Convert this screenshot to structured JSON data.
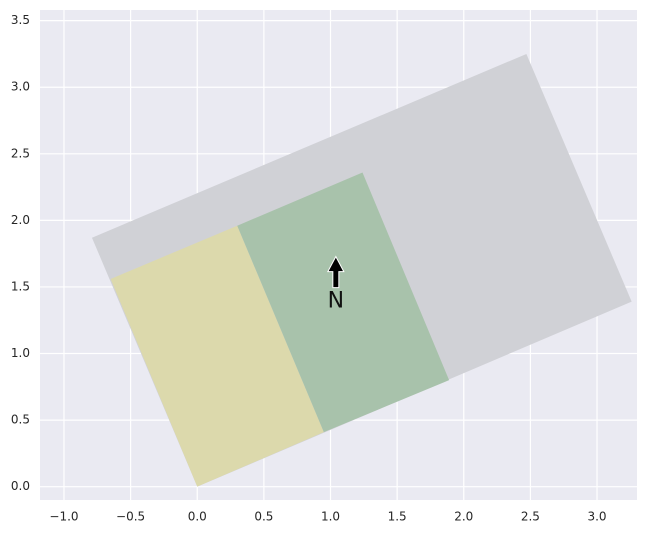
{
  "chart_data": {
    "type": "polygon",
    "xlim": [
      -1.18,
      3.3
    ],
    "ylim": [
      -0.1,
      3.58
    ],
    "xticks": [
      {
        "value": -1.0,
        "label": "−1.0"
      },
      {
        "value": -0.5,
        "label": "−0.5"
      },
      {
        "value": 0.0,
        "label": "0.0"
      },
      {
        "value": 0.5,
        "label": "0.5"
      },
      {
        "value": 1.0,
        "label": "1.0"
      },
      {
        "value": 1.5,
        "label": "1.5"
      },
      {
        "value": 2.0,
        "label": "2.0"
      },
      {
        "value": 2.5,
        "label": "2.5"
      },
      {
        "value": 3.0,
        "label": "3.0"
      }
    ],
    "yticks": [
      {
        "value": 0.0,
        "label": "0.0"
      },
      {
        "value": 0.5,
        "label": "0.5"
      },
      {
        "value": 1.0,
        "label": "1.0"
      },
      {
        "value": 1.5,
        "label": "1.5"
      },
      {
        "value": 2.0,
        "label": "2.0"
      },
      {
        "value": 2.5,
        "label": "2.5"
      },
      {
        "value": 3.0,
        "label": "3.0"
      },
      {
        "value": 3.5,
        "label": "3.5"
      }
    ],
    "grid": true,
    "series": [
      {
        "color": "#d0d1d6",
        "x": [
          0,
          3.26,
          2.47,
          -0.79
        ],
        "y": [
          0,
          1.39,
          3.25,
          1.87
        ]
      },
      {
        "color": "#dcd9ac",
        "x": [
          0,
          0.95,
          0.3,
          -0.65
        ],
        "y": [
          0,
          0.41,
          1.96,
          1.56
        ]
      },
      {
        "color": "#a8c2ab",
        "x": [
          0.95,
          1.89,
          1.24,
          0.3
        ],
        "y": [
          0.41,
          0.8,
          2.36,
          1.96
        ]
      }
    ],
    "annotations": [
      {
        "text": "N",
        "x": 1.04,
        "y": 1.39
      }
    ]
  }
}
